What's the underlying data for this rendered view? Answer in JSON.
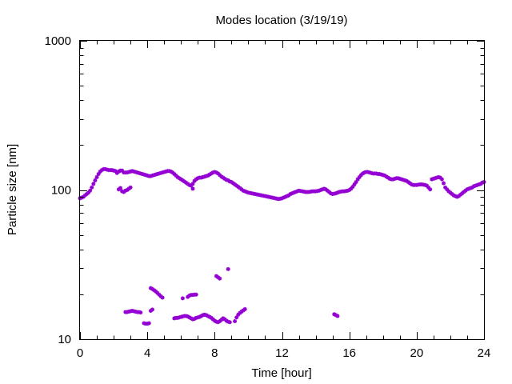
{
  "chart_data": {
    "type": "scatter",
    "title": "Modes location (3/19/19)",
    "xlabel": "Time [hour]",
    "ylabel": "Particle size [nm]",
    "xlim": [
      0,
      24
    ],
    "ylim": [
      10,
      1000
    ],
    "y_scale": "log",
    "grid": false,
    "legend": "none",
    "marker_color": "#9400d3",
    "x_ticks": [
      0,
      4,
      8,
      12,
      16,
      20,
      24
    ],
    "x_tick_labels": [
      "0",
      "4",
      "8",
      "12",
      "16",
      "20",
      "24"
    ],
    "y_ticks": [
      10,
      100,
      1000
    ],
    "y_tick_labels": [
      "10",
      "100",
      "1000"
    ],
    "series": [
      {
        "points": [
          [
            0.0,
            88
          ],
          [
            0.1,
            89
          ],
          [
            0.2,
            90
          ],
          [
            0.3,
            92
          ],
          [
            0.4,
            94
          ],
          [
            0.5,
            96
          ],
          [
            0.6,
            99
          ],
          [
            0.7,
            104
          ],
          [
            0.8,
            110
          ],
          [
            0.9,
            116
          ],
          [
            1.0,
            122
          ],
          [
            1.1,
            128
          ],
          [
            1.2,
            133
          ],
          [
            1.3,
            136
          ],
          [
            1.4,
            138
          ],
          [
            1.5,
            138
          ],
          [
            1.6,
            137
          ],
          [
            1.7,
            136
          ],
          [
            1.8,
            136
          ],
          [
            1.9,
            136
          ],
          [
            2.0,
            135
          ],
          [
            2.1,
            134
          ],
          [
            2.2,
            130
          ],
          [
            2.3,
            133
          ],
          [
            2.4,
            135
          ],
          [
            2.5,
            135
          ],
          [
            2.6,
            131
          ],
          [
            2.7,
            131
          ],
          [
            2.8,
            131
          ],
          [
            2.9,
            132
          ],
          [
            3.0,
            133
          ],
          [
            3.1,
            134
          ],
          [
            3.2,
            133
          ],
          [
            3.3,
            132
          ],
          [
            3.4,
            131
          ],
          [
            3.5,
            130
          ],
          [
            3.6,
            129
          ],
          [
            3.7,
            128
          ],
          [
            3.8,
            127
          ],
          [
            3.9,
            126
          ],
          [
            4.0,
            125
          ],
          [
            4.1,
            124
          ],
          [
            4.2,
            124
          ],
          [
            4.3,
            125
          ],
          [
            4.4,
            126
          ],
          [
            4.5,
            127
          ],
          [
            4.6,
            128
          ],
          [
            4.7,
            129
          ],
          [
            4.8,
            130
          ],
          [
            4.9,
            131
          ],
          [
            5.0,
            132
          ],
          [
            5.1,
            133
          ],
          [
            5.2,
            134
          ],
          [
            5.3,
            134
          ],
          [
            5.4,
            133
          ],
          [
            5.5,
            131
          ],
          [
            5.6,
            128
          ],
          [
            5.7,
            125
          ],
          [
            5.8,
            122
          ],
          [
            5.9,
            120
          ],
          [
            6.0,
            118
          ],
          [
            6.1,
            116
          ],
          [
            6.2,
            114
          ],
          [
            6.3,
            112
          ],
          [
            6.4,
            110
          ],
          [
            6.5,
            108
          ],
          [
            6.6,
            107
          ],
          [
            6.7,
            110
          ],
          [
            6.8,
            115
          ],
          [
            6.9,
            118
          ],
          [
            7.0,
            120
          ],
          [
            7.1,
            121
          ],
          [
            7.2,
            121
          ],
          [
            7.3,
            122
          ],
          [
            7.4,
            123
          ],
          [
            7.5,
            124
          ],
          [
            7.6,
            125
          ],
          [
            7.7,
            127
          ],
          [
            7.8,
            129
          ],
          [
            7.9,
            131
          ],
          [
            8.0,
            132
          ],
          [
            8.1,
            131
          ],
          [
            8.2,
            129
          ],
          [
            8.3,
            126
          ],
          [
            8.4,
            123
          ],
          [
            8.5,
            121
          ],
          [
            8.6,
            119
          ],
          [
            8.7,
            117
          ],
          [
            8.8,
            116
          ],
          [
            8.9,
            114
          ],
          [
            9.0,
            113
          ],
          [
            9.1,
            111
          ],
          [
            9.2,
            109
          ],
          [
            9.3,
            107
          ],
          [
            9.4,
            105
          ],
          [
            9.5,
            103
          ],
          [
            9.6,
            101
          ],
          [
            9.7,
            99
          ],
          [
            9.8,
            98
          ],
          [
            9.9,
            97
          ],
          [
            10.0,
            96
          ],
          [
            10.1,
            95.5
          ],
          [
            10.2,
            95
          ],
          [
            10.3,
            94.5
          ],
          [
            10.4,
            94
          ],
          [
            10.5,
            93.5
          ],
          [
            10.6,
            93
          ],
          [
            10.7,
            92.5
          ],
          [
            10.8,
            92
          ],
          [
            10.9,
            91.5
          ],
          [
            11.0,
            91
          ],
          [
            11.1,
            90.5
          ],
          [
            11.2,
            90
          ],
          [
            11.3,
            89.5
          ],
          [
            11.4,
            89
          ],
          [
            11.5,
            88.5
          ],
          [
            11.6,
            88
          ],
          [
            11.7,
            87.5
          ],
          [
            11.8,
            87
          ],
          [
            11.9,
            87.5
          ],
          [
            12.0,
            88
          ],
          [
            12.1,
            89
          ],
          [
            12.2,
            90
          ],
          [
            12.3,
            91
          ],
          [
            12.4,
            92
          ],
          [
            12.5,
            94
          ],
          [
            12.6,
            95
          ],
          [
            12.7,
            96
          ],
          [
            12.8,
            97
          ],
          [
            12.9,
            98
          ],
          [
            13.0,
            99
          ],
          [
            13.1,
            98.5
          ],
          [
            13.2,
            98
          ],
          [
            13.3,
            97.5
          ],
          [
            13.4,
            97
          ],
          [
            13.5,
            97
          ],
          [
            13.6,
            97
          ],
          [
            13.7,
            97.5
          ],
          [
            13.8,
            98
          ],
          [
            13.9,
            98
          ],
          [
            14.0,
            98
          ],
          [
            14.1,
            98.5
          ],
          [
            14.2,
            99
          ],
          [
            14.3,
            100
          ],
          [
            14.4,
            101
          ],
          [
            14.5,
            102
          ],
          [
            14.6,
            101
          ],
          [
            14.7,
            99
          ],
          [
            14.8,
            97
          ],
          [
            14.9,
            95
          ],
          [
            15.0,
            94
          ],
          [
            15.1,
            94.5
          ],
          [
            15.2,
            95
          ],
          [
            15.3,
            96
          ],
          [
            15.4,
            97
          ],
          [
            15.5,
            97.5
          ],
          [
            15.6,
            98
          ],
          [
            15.7,
            98
          ],
          [
            15.8,
            98.5
          ],
          [
            15.9,
            99
          ],
          [
            16.0,
            100
          ],
          [
            16.1,
            102
          ],
          [
            16.2,
            105
          ],
          [
            16.3,
            109
          ],
          [
            16.4,
            113
          ],
          [
            16.5,
            118
          ],
          [
            16.6,
            122
          ],
          [
            16.7,
            126
          ],
          [
            16.8,
            129
          ],
          [
            16.9,
            131
          ],
          [
            17.0,
            132
          ],
          [
            17.1,
            132
          ],
          [
            17.2,
            131
          ],
          [
            17.3,
            130
          ],
          [
            17.4,
            129
          ],
          [
            17.5,
            129
          ],
          [
            17.6,
            129
          ],
          [
            17.7,
            128
          ],
          [
            17.8,
            128
          ],
          [
            17.9,
            127
          ],
          [
            18.0,
            126
          ],
          [
            18.1,
            125
          ],
          [
            18.2,
            123
          ],
          [
            18.3,
            121
          ],
          [
            18.4,
            119
          ],
          [
            18.5,
            118
          ],
          [
            18.6,
            118
          ],
          [
            18.7,
            119
          ],
          [
            18.8,
            120
          ],
          [
            18.9,
            120
          ],
          [
            19.0,
            119
          ],
          [
            19.1,
            118
          ],
          [
            19.2,
            117
          ],
          [
            19.3,
            116
          ],
          [
            19.4,
            115
          ],
          [
            19.5,
            113
          ],
          [
            19.6,
            111
          ],
          [
            19.7,
            109
          ],
          [
            19.8,
            108
          ],
          [
            19.9,
            108
          ],
          [
            20.0,
            108
          ],
          [
            20.1,
            108.5
          ],
          [
            20.2,
            109
          ],
          [
            20.3,
            109
          ],
          [
            20.4,
            108.5
          ],
          [
            20.5,
            108
          ],
          [
            20.6,
            107
          ],
          [
            20.7,
            104
          ],
          [
            20.8,
            101
          ],
          [
            20.9,
            118
          ],
          [
            21.0,
            119
          ],
          [
            21.1,
            120
          ],
          [
            21.2,
            121
          ],
          [
            21.3,
            122
          ],
          [
            21.4,
            121
          ],
          [
            21.5,
            118
          ],
          [
            21.6,
            111
          ],
          [
            21.7,
            104
          ],
          [
            21.8,
            101
          ],
          [
            21.9,
            98
          ],
          [
            22.0,
            96
          ],
          [
            22.1,
            94
          ],
          [
            22.2,
            92
          ],
          [
            22.3,
            91
          ],
          [
            22.4,
            90
          ],
          [
            22.5,
            91
          ],
          [
            22.6,
            93
          ],
          [
            22.7,
            95
          ],
          [
            22.8,
            97
          ],
          [
            22.9,
            99
          ],
          [
            23.0,
            101
          ],
          [
            23.1,
            102
          ],
          [
            23.2,
            103
          ],
          [
            23.3,
            104
          ],
          [
            23.4,
            106
          ],
          [
            23.5,
            107
          ],
          [
            23.6,
            108
          ],
          [
            23.7,
            109
          ],
          [
            23.8,
            110
          ],
          [
            23.9,
            112
          ],
          [
            24.0,
            113
          ],
          [
            2.3,
            101
          ],
          [
            2.4,
            103
          ],
          [
            2.5,
            98
          ],
          [
            2.6,
            97
          ],
          [
            2.7,
            99
          ],
          [
            2.8,
            100
          ],
          [
            2.9,
            102
          ],
          [
            3.0,
            104
          ],
          [
            6.7,
            102
          ],
          [
            2.7,
            15.2
          ],
          [
            2.8,
            15.2
          ],
          [
            2.9,
            15.3
          ],
          [
            3.0,
            15.4
          ],
          [
            3.1,
            15.5
          ],
          [
            3.2,
            15.4
          ],
          [
            3.3,
            15.3
          ],
          [
            3.4,
            15.2
          ],
          [
            3.5,
            15.2
          ],
          [
            3.6,
            15.1
          ],
          [
            3.8,
            12.8
          ],
          [
            3.9,
            12.7
          ],
          [
            4.0,
            12.7
          ],
          [
            4.1,
            12.8
          ],
          [
            4.2,
            15.5
          ],
          [
            4.3,
            15.8
          ],
          [
            4.2,
            22.0
          ],
          [
            4.3,
            21.7
          ],
          [
            4.4,
            21.3
          ],
          [
            4.5,
            20.9
          ],
          [
            4.6,
            20.4
          ],
          [
            4.7,
            19.9
          ],
          [
            4.8,
            19.4
          ],
          [
            4.9,
            19.0
          ],
          [
            5.6,
            13.8
          ],
          [
            5.7,
            13.9
          ],
          [
            5.8,
            13.9
          ],
          [
            5.9,
            14.0
          ],
          [
            6.0,
            14.1
          ],
          [
            6.1,
            14.2
          ],
          [
            6.2,
            14.3
          ],
          [
            6.3,
            14.3
          ],
          [
            6.4,
            14.2
          ],
          [
            6.5,
            14.0
          ],
          [
            6.6,
            13.8
          ],
          [
            6.7,
            13.6
          ],
          [
            6.8,
            13.7
          ],
          [
            6.9,
            13.9
          ],
          [
            7.0,
            14.0
          ],
          [
            7.1,
            14.1
          ],
          [
            7.2,
            14.3
          ],
          [
            7.3,
            14.5
          ],
          [
            7.4,
            14.6
          ],
          [
            7.5,
            14.5
          ],
          [
            7.6,
            14.3
          ],
          [
            7.7,
            14.1
          ],
          [
            7.8,
            13.9
          ],
          [
            7.9,
            13.6
          ],
          [
            8.0,
            13.3
          ],
          [
            8.1,
            13.1
          ],
          [
            8.2,
            13.0
          ],
          [
            8.3,
            13.2
          ],
          [
            8.4,
            13.5
          ],
          [
            8.5,
            13.8
          ],
          [
            8.6,
            13.6
          ],
          [
            8.7,
            13.3
          ],
          [
            8.8,
            13.1
          ],
          [
            8.9,
            13.0
          ],
          [
            6.1,
            18.8
          ],
          [
            6.4,
            19.2
          ],
          [
            6.5,
            19.6
          ],
          [
            6.6,
            19.8
          ],
          [
            6.7,
            19.8
          ],
          [
            6.8,
            19.9
          ],
          [
            6.9,
            19.9
          ],
          [
            8.1,
            26.5
          ],
          [
            8.2,
            26.0
          ],
          [
            8.3,
            25.5
          ],
          [
            8.8,
            29.5
          ],
          [
            9.2,
            13.2
          ],
          [
            9.3,
            14.0
          ],
          [
            9.4,
            14.6
          ],
          [
            9.5,
            15.0
          ],
          [
            9.6,
            15.3
          ],
          [
            9.7,
            15.6
          ],
          [
            9.8,
            15.9
          ],
          [
            15.1,
            14.7
          ],
          [
            15.2,
            14.5
          ],
          [
            15.3,
            14.3
          ]
        ]
      }
    ]
  }
}
